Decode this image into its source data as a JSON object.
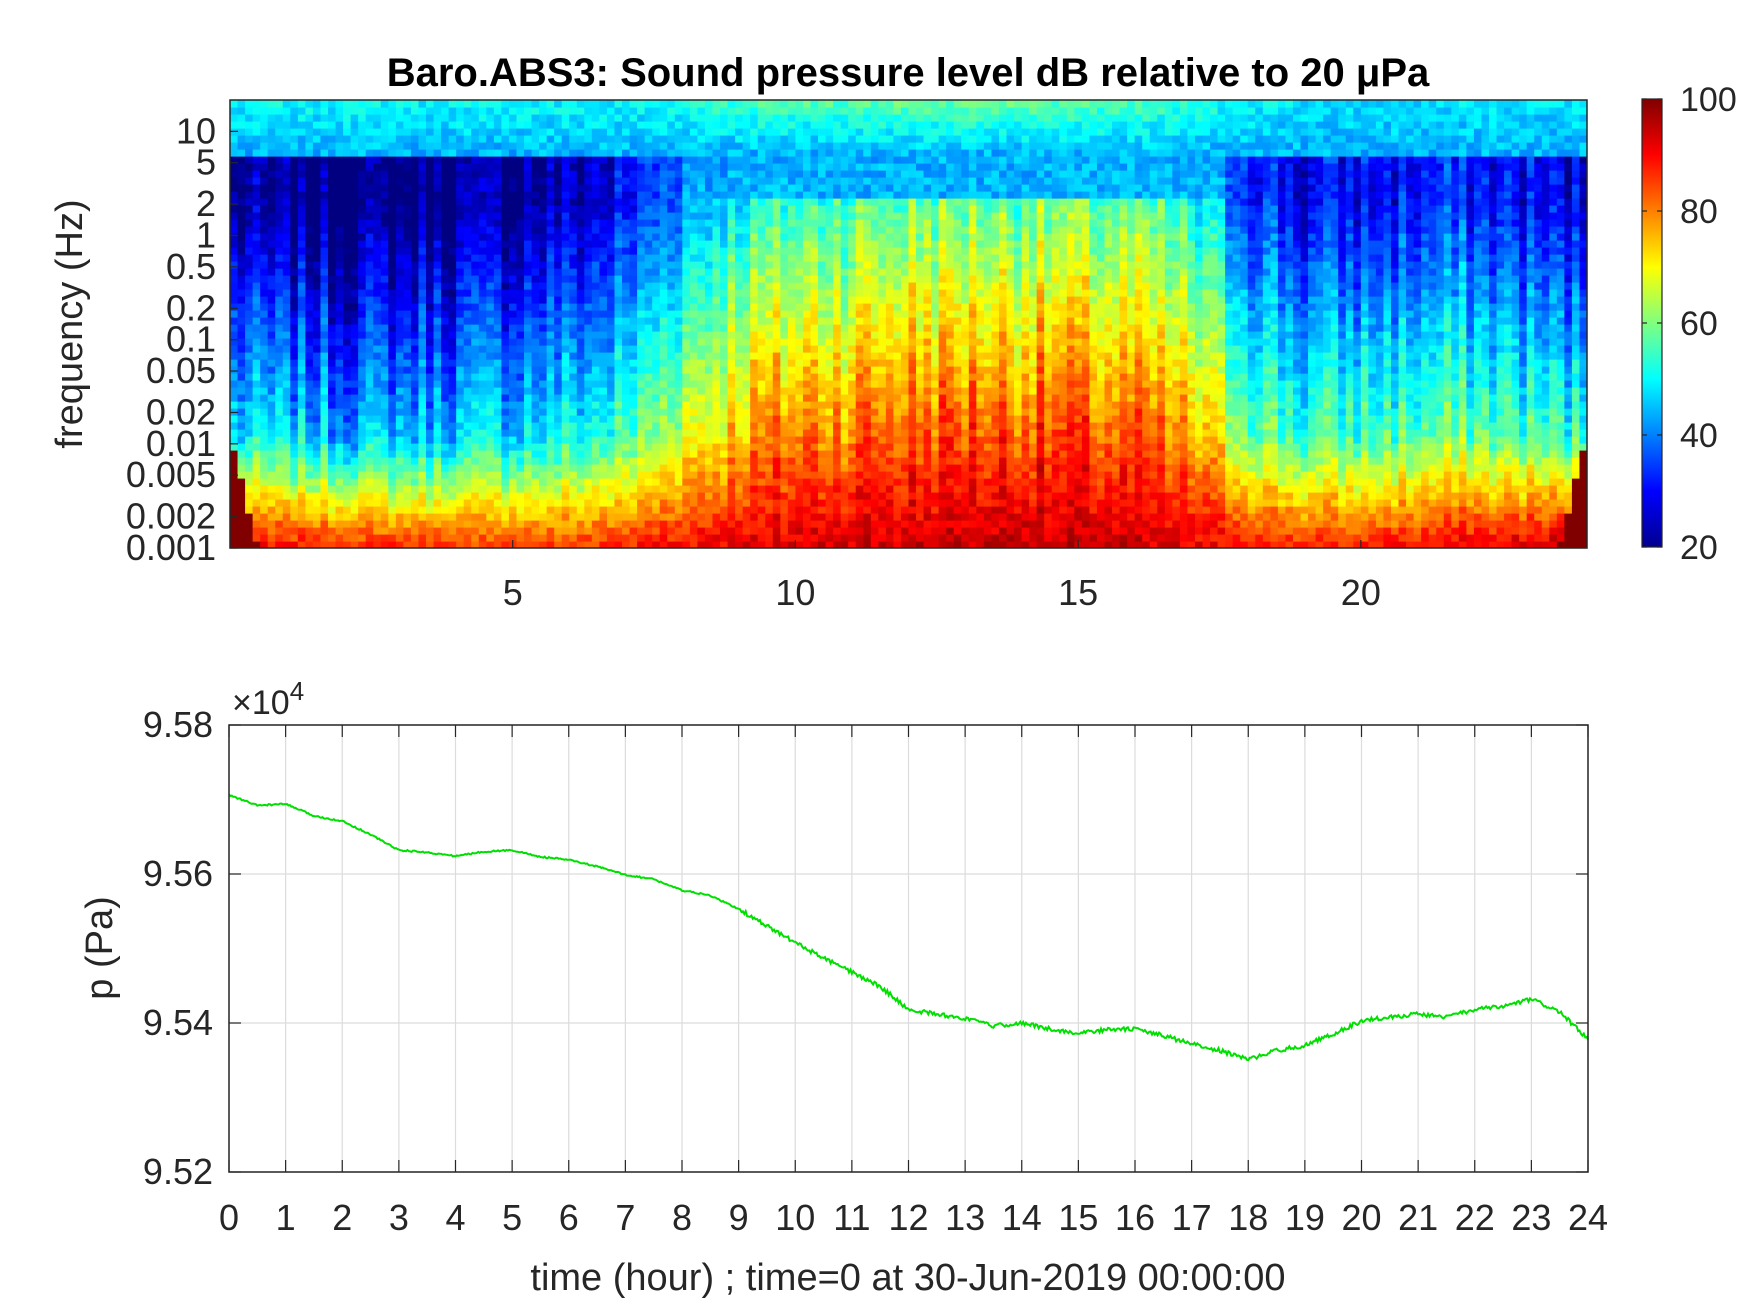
{
  "chart_data": [
    {
      "type": "heatmap",
      "title": "Baro.ABS3: Sound pressure level dB relative to 20 μPa",
      "xlabel": "",
      "ylabel": "frequency (Hz)",
      "x_ticks": [
        5,
        10,
        15,
        20
      ],
      "xlim": [
        0,
        24
      ],
      "y_scale": "log",
      "y_ticks": [
        "0.001",
        "0.002",
        "0.005",
        "0.01",
        "0.02",
        "0.05",
        "0.1",
        "0.2",
        "0.5",
        "1",
        "2",
        "5",
        "10"
      ],
      "ylim": [
        0.001,
        20
      ],
      "colormap": "jet",
      "colorbar": {
        "ticks": [
          20,
          40,
          60,
          80,
          100
        ],
        "range": [
          20,
          100
        ]
      },
      "value_profile": {
        "hours": [
          0,
          2,
          4,
          6,
          7,
          8,
          9,
          10,
          12,
          14,
          16,
          17,
          18,
          19,
          20,
          22,
          24
        ],
        "mid_frequency_level_db": [
          48,
          44,
          46,
          50,
          55,
          68,
          76,
          80,
          84,
          85,
          82,
          76,
          62,
          54,
          56,
          58,
          52
        ],
        "low_frequency_level_db": [
          92,
          88,
          86,
          86,
          88,
          90,
          92,
          93,
          94,
          95,
          94,
          92,
          90,
          88,
          88,
          92,
          96
        ],
        "high_frequency_level_db": [
          50,
          50,
          50,
          50,
          50,
          52,
          55,
          56,
          58,
          58,
          56,
          54,
          50,
          48,
          48,
          48,
          48
        ]
      },
      "grid": false
    },
    {
      "type": "line",
      "title": "",
      "xlabel": "time (hour) ; time=0 at 30-Jun-2019 00:00:00",
      "ylabel": "p (Pa)",
      "y_multiplier": "×10",
      "y_multiplier_exponent": "4",
      "xlim": [
        0,
        24
      ],
      "ylim": [
        9.52,
        9.58
      ],
      "x_ticks": [
        0,
        1,
        2,
        3,
        4,
        5,
        6,
        7,
        8,
        9,
        10,
        11,
        12,
        13,
        14,
        15,
        16,
        17,
        18,
        19,
        20,
        21,
        22,
        23,
        24
      ],
      "y_ticks": [
        "9.52",
        "9.54",
        "9.56",
        "9.58"
      ],
      "grid": true,
      "series": [
        {
          "color": "#00e000",
          "x": [
            0,
            0.5,
            1,
            1.5,
            2,
            2.5,
            3,
            3.5,
            4,
            4.5,
            5,
            5.5,
            6,
            6.5,
            7,
            7.5,
            8,
            8.5,
            9,
            9.5,
            10,
            10.5,
            11,
            11.5,
            12,
            12.5,
            13,
            13.5,
            14,
            14.5,
            15,
            15.5,
            16,
            16.5,
            17,
            17.5,
            18,
            18.5,
            19,
            19.5,
            20,
            20.5,
            21,
            21.5,
            22,
            22.5,
            23,
            23.5,
            24
          ],
          "y": [
            9.5706,
            9.5692,
            9.5694,
            9.5678,
            9.5671,
            9.5653,
            9.5632,
            9.5629,
            9.5624,
            9.563,
            9.5632,
            9.5623,
            9.5619,
            9.561,
            9.5599,
            9.5593,
            9.5578,
            9.5571,
            9.5553,
            9.553,
            9.5508,
            9.5487,
            9.5468,
            9.5449,
            9.5418,
            9.5412,
            9.5406,
            9.5396,
            9.54,
            9.5392,
            9.5386,
            9.5391,
            9.5392,
            9.5383,
            9.5372,
            9.5363,
            9.5351,
            9.5363,
            9.537,
            9.5385,
            9.5403,
            9.5408,
            9.5412,
            9.5408,
            9.5418,
            9.5422,
            9.5432,
            9.5415,
            9.5378
          ]
        }
      ]
    }
  ]
}
